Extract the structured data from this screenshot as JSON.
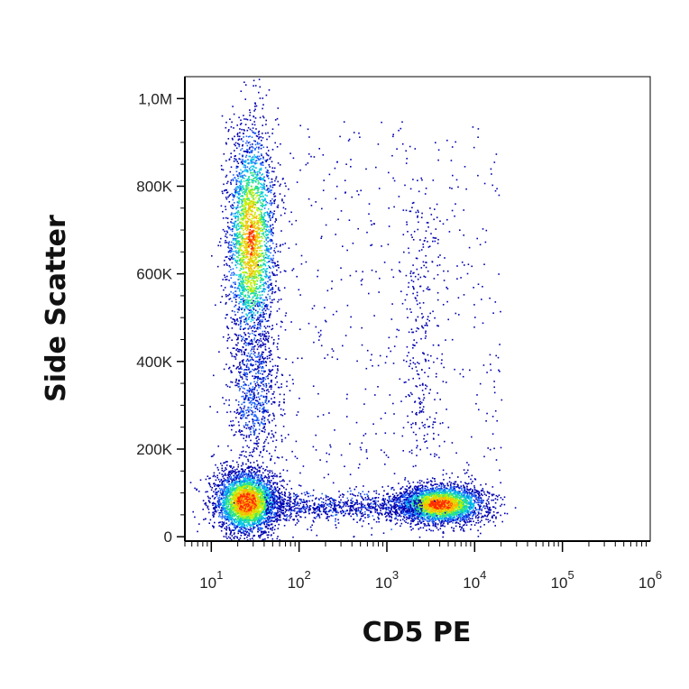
{
  "chart_data": {
    "type": "scatter",
    "title": "",
    "xlabel": "CD5 PE",
    "ylabel": "Side Scatter",
    "x_scale": "log",
    "xlim": [
      5,
      1000000
    ],
    "ylim": [
      -10000,
      1050000
    ],
    "grid": false,
    "x_ticks": [
      {
        "value": 10,
        "base": "10",
        "exp": "1"
      },
      {
        "value": 100,
        "base": "10",
        "exp": "2"
      },
      {
        "value": 1000,
        "base": "10",
        "exp": "3"
      },
      {
        "value": 10000,
        "base": "10",
        "exp": "4"
      },
      {
        "value": 100000,
        "base": "10",
        "exp": "5"
      },
      {
        "value": 1000000,
        "base": "10",
        "exp": "6"
      }
    ],
    "y_ticks": [
      {
        "value": 0,
        "label": "0"
      },
      {
        "value": 200000,
        "label": "200K"
      },
      {
        "value": 400000,
        "label": "400K"
      },
      {
        "value": 600000,
        "label": "600K"
      },
      {
        "value": 800000,
        "label": "800K"
      },
      {
        "value": 1000000,
        "label": "1,0M"
      }
    ],
    "color_scale": [
      "#0000b0",
      "#1e64ff",
      "#00c8e6",
      "#32e678",
      "#c8f000",
      "#ffb400",
      "#ff2800"
    ],
    "populations": [
      {
        "x_center": 25,
        "y_center": 80000,
        "x_spread_decades": 0.18,
        "y_spread": 35000,
        "relative_density": 1.0
      },
      {
        "x_center": 28,
        "y_center": 680000,
        "x_spread_decades": 0.14,
        "y_spread": 130000,
        "relative_density": 0.85
      },
      {
        "x_center": 30,
        "y_center": 330000,
        "x_spread_decades": 0.16,
        "y_spread": 90000,
        "relative_density": 0.25
      },
      {
        "x_center": 4000,
        "y_center": 75000,
        "x_spread_decades": 0.25,
        "y_spread": 22000,
        "relative_density": 0.95
      }
    ]
  }
}
